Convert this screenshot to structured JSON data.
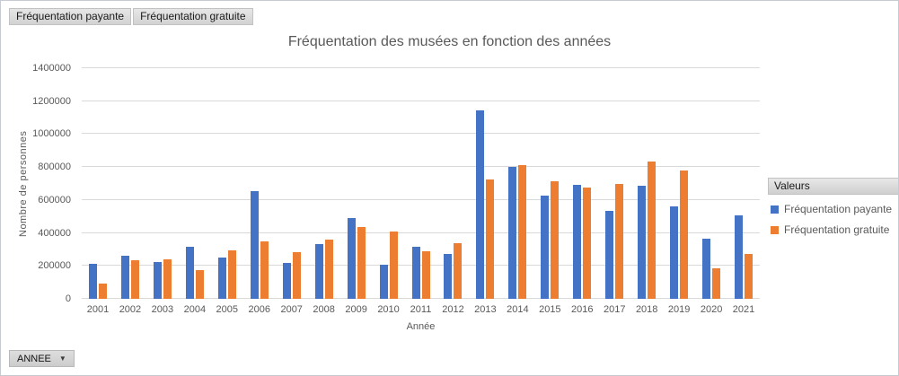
{
  "window": {
    "background": "#ffffff",
    "border_color": "#c6cbd1"
  },
  "field_buttons": [
    {
      "label": "Fréquentation payante"
    },
    {
      "label": "Fréquentation gratuite"
    }
  ],
  "axis_button": {
    "label": "ANNEE",
    "icon": "▼"
  },
  "legend": {
    "header": "Valeurs",
    "position": "right",
    "items": [
      {
        "label": "Fréquentation payante",
        "color": "#4472C4"
      },
      {
        "label": "Fréquentation gratuite",
        "color": "#ED7D31"
      }
    ]
  },
  "chart_data": {
    "type": "bar",
    "title": "Fréquentation des musées en fonction des années",
    "xlabel": "Année",
    "ylabel": "Nombre  de personnes",
    "ylim": [
      0,
      1400000
    ],
    "ytick_step": 200000,
    "grid": true,
    "legend_position": "right",
    "gridline_color": "#d9d9d9",
    "text_color": "#595959",
    "categories": [
      "2001",
      "2002",
      "2003",
      "2004",
      "2005",
      "2006",
      "2007",
      "2008",
      "2009",
      "2010",
      "2011",
      "2012",
      "2013",
      "2014",
      "2015",
      "2016",
      "2017",
      "2018",
      "2019",
      "2020",
      "2021"
    ],
    "series": [
      {
        "name": "Fréquentation payante",
        "color": "#4472C4",
        "values": [
          213000,
          262000,
          225000,
          316000,
          250000,
          655000,
          218000,
          331000,
          493000,
          205000,
          316000,
          272000,
          1142000,
          802000,
          629000,
          693000,
          535000,
          689000,
          560000,
          364000,
          504000
        ]
      },
      {
        "name": "Fréquentation gratuite",
        "color": "#ED7D31",
        "values": [
          90000,
          233000,
          238000,
          177000,
          292000,
          349000,
          286000,
          362000,
          435000,
          407000,
          287000,
          336000,
          727000,
          813000,
          711000,
          676000,
          698000,
          836000,
          780000,
          185000,
          274000
        ]
      }
    ]
  }
}
